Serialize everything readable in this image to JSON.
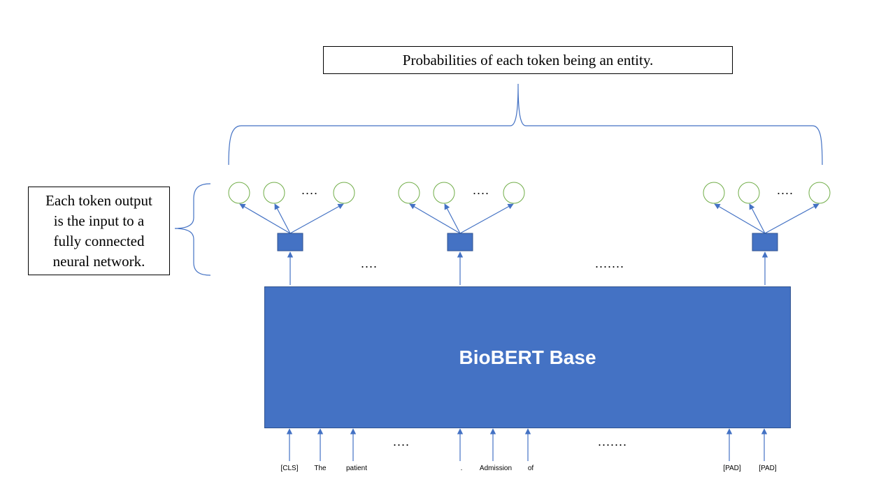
{
  "diagram": {
    "title": "Probabilities of each token being an entity.",
    "side_note_lines": [
      "Each token output",
      "is the input to a",
      "fully connected",
      "neural network."
    ],
    "model_label": "BioBERT Base",
    "ellipsis_short": "....",
    "ellipsis_long": ".......",
    "tokens": [
      "[CLS]",
      "The",
      "patient",
      ".",
      "Admission",
      "of",
      "[PAD]",
      "[PAD]"
    ],
    "colors": {
      "model_fill": "#4472c4",
      "arrow": "#4472c4",
      "brace": "#4472c4",
      "neuron_outline": "#70ad47",
      "box_border": "#000000"
    }
  }
}
